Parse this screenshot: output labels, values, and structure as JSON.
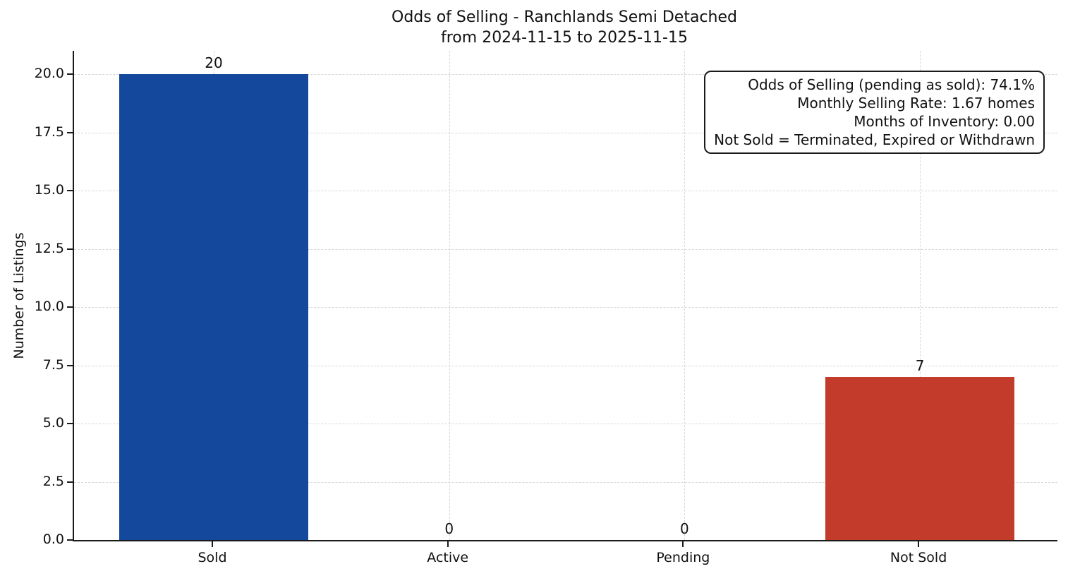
{
  "chart_data": {
    "type": "bar",
    "title_line1": "Odds of Selling - Ranchlands Semi Detached",
    "title_line2": "from 2024-11-15 to 2025-11-15",
    "ylabel": "Number of Listings",
    "xlabel": "",
    "categories": [
      "Sold",
      "Active",
      "Pending",
      "Not Sold"
    ],
    "values": [
      20,
      0,
      0,
      7
    ],
    "value_labels": [
      "20",
      "0",
      "0",
      "7"
    ],
    "bar_colors": [
      "#14489c",
      null,
      null,
      "#c23b2b"
    ],
    "ylim": [
      0,
      21
    ],
    "yticks": [
      0,
      2.5,
      5,
      7.5,
      10,
      12.5,
      15,
      17.5,
      20
    ],
    "ytick_labels": [
      "0.0",
      "2.5",
      "5.0",
      "7.5",
      "10.0",
      "12.5",
      "15.0",
      "17.5",
      "20.0"
    ],
    "grid": "dashed, horizontal and vertical",
    "legend": "none",
    "annotation": {
      "position": "top-right",
      "lines": [
        "Odds of Selling (pending as sold): 74.1%",
        "Monthly Selling Rate: 1.67 homes",
        "Months of Inventory: 0.00",
        "Not Sold = Terminated, Expired or Withdrawn"
      ]
    }
  },
  "colors": {
    "sold_bar": "#14489c",
    "not_sold_bar": "#c23b2b",
    "axis": "#1a1a1a",
    "grid": "#d7d7d7",
    "background": "#ffffff",
    "text": "#111111"
  }
}
